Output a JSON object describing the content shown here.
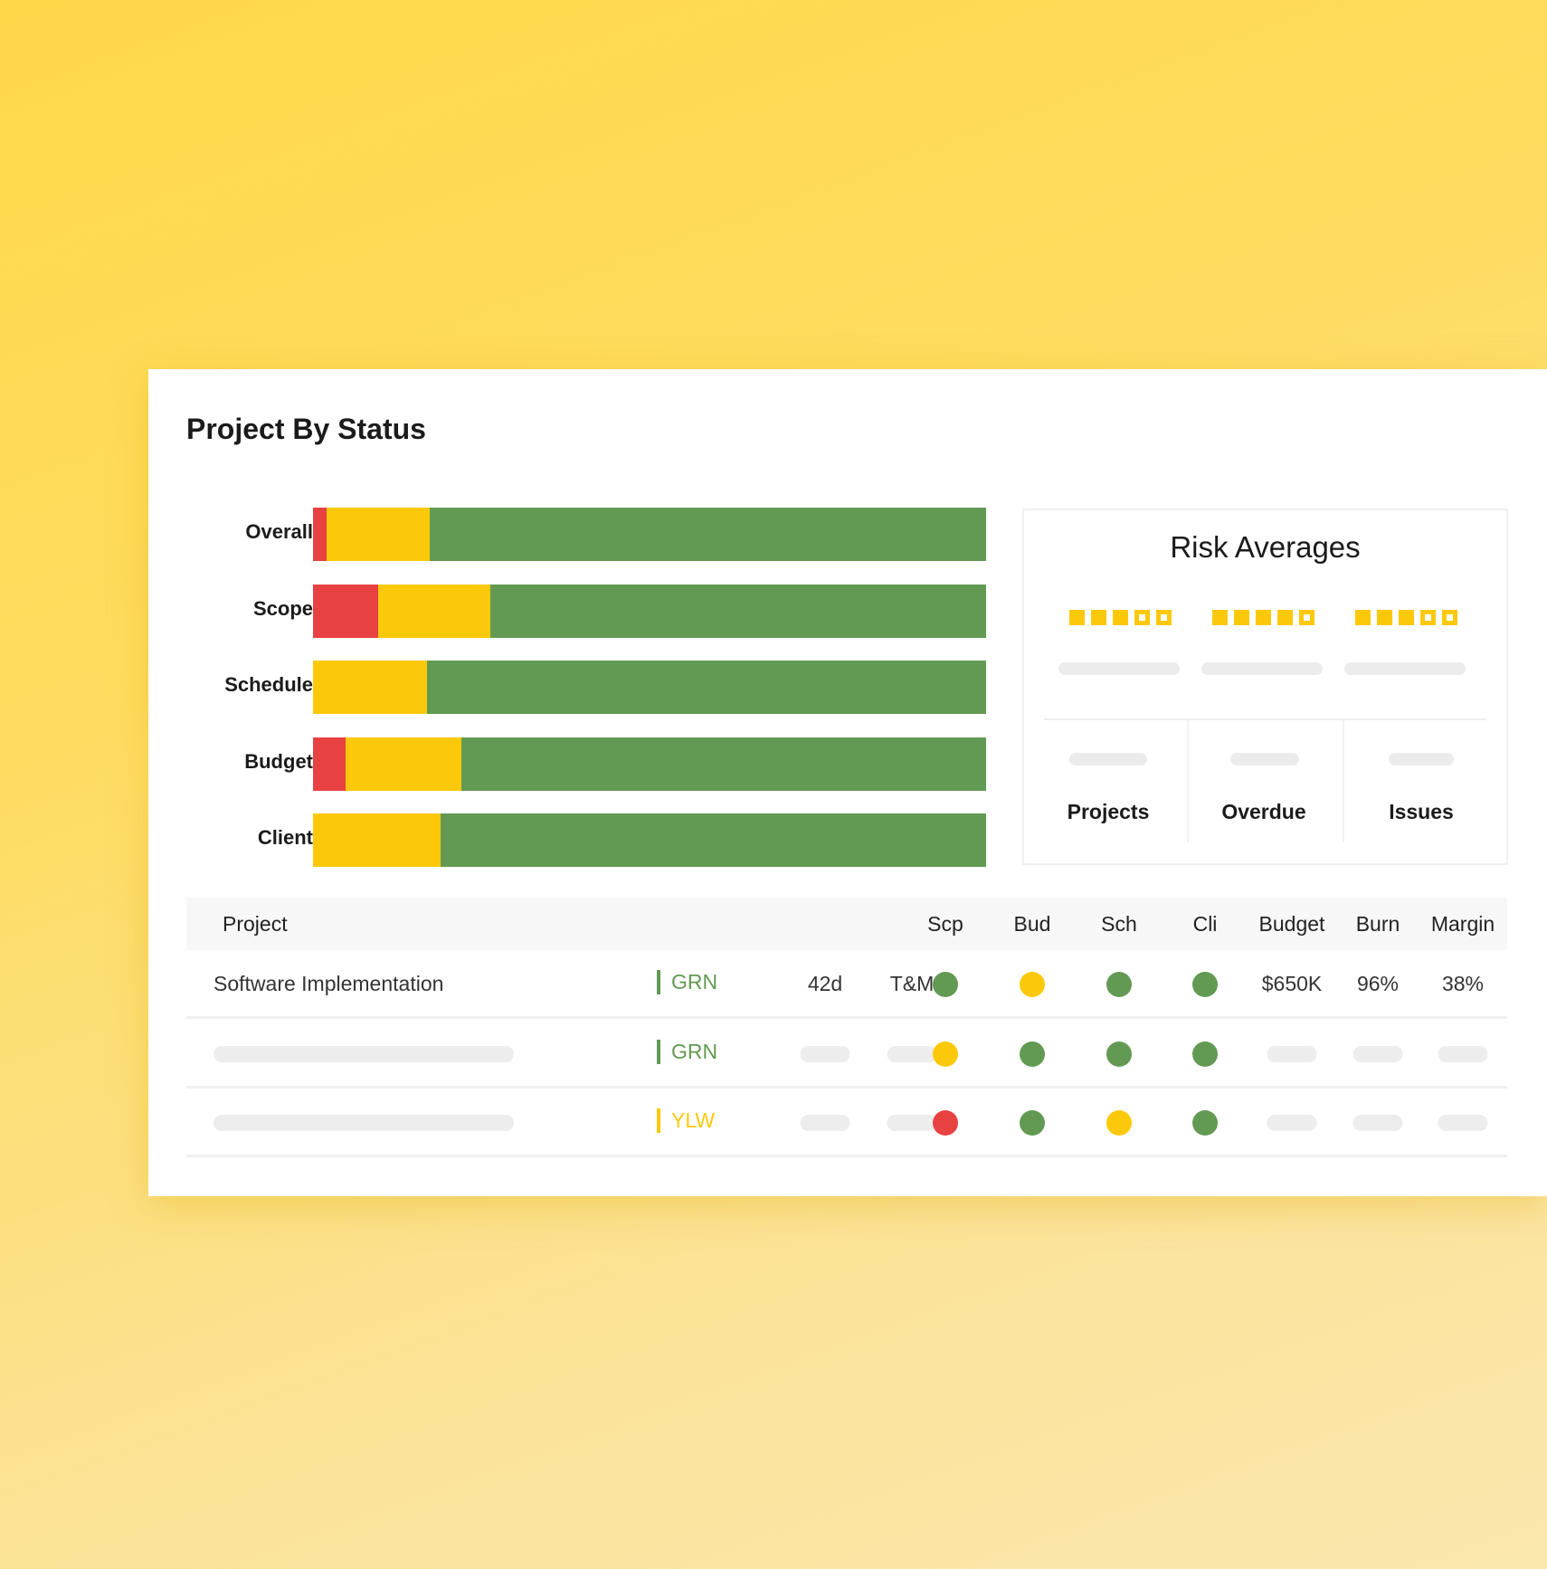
{
  "title": "Project By Status",
  "colors": {
    "red": "#e84142",
    "yellow": "#fcc90a",
    "green": "#629a53"
  },
  "chart_data": {
    "type": "bar",
    "stacked": true,
    "orientation": "horizontal",
    "title": "Project By Status",
    "categories": [
      "Overall",
      "Scope",
      "Schedule",
      "Budget",
      "Client"
    ],
    "unit": "percent",
    "series": [
      {
        "name": "red",
        "values": [
          2,
          9.7,
          0,
          4.8,
          0
        ]
      },
      {
        "name": "yellow",
        "values": [
          15.3,
          16.6,
          16.9,
          17.2,
          18.9
        ]
      },
      {
        "name": "green",
        "values": [
          82.7,
          73.7,
          83.1,
          78,
          81.1
        ]
      }
    ]
  },
  "risk": {
    "title": "Risk Averages",
    "ratings": [
      3,
      4,
      3
    ],
    "max": 5,
    "stats": [
      "Projects",
      "Overdue",
      "Issues"
    ]
  },
  "table": {
    "headers": {
      "project": "Project",
      "scp": "Scp",
      "bud": "Bud",
      "sch": "Sch",
      "cli": "Cli",
      "budget": "Budget",
      "burn": "Burn",
      "margin": "Margin"
    },
    "rows": [
      {
        "project": "Software Implementation",
        "status": "GRN",
        "status_color": "green",
        "days": "42d",
        "type": "T&M",
        "dots": [
          "green",
          "yellow",
          "green",
          "green"
        ],
        "budget": "$650K",
        "burn": "96%",
        "margin": "38%"
      },
      {
        "status": "GRN",
        "status_color": "green",
        "dots": [
          "yellow",
          "green",
          "green",
          "green"
        ]
      },
      {
        "status": "YLW",
        "status_color": "yellow",
        "dots": [
          "red",
          "green",
          "yellow",
          "green"
        ]
      }
    ]
  }
}
